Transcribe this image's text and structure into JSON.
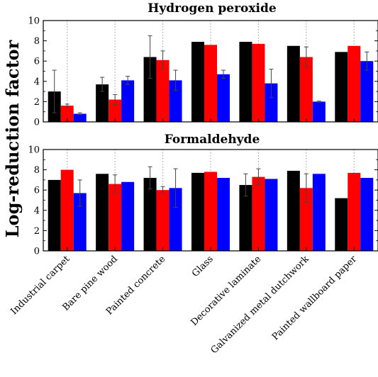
{
  "chart_data": [
    {
      "type": "bar",
      "title": "Hydrogen peroxide",
      "ylabel": "Log-reduction factor",
      "categories": [
        "Industrial carpet",
        "Bare pine wood",
        "Painted concrete",
        "Glass",
        "Decorative laminate",
        "Galvanized metal dutchwork",
        "Painted wallboard paper"
      ],
      "ylim": [
        0,
        10
      ],
      "yticks": [
        0,
        2,
        4,
        6,
        8,
        10
      ],
      "series": [
        {
          "color": "#000000",
          "values": [
            3.0,
            3.7,
            6.4,
            7.9,
            7.9,
            7.5,
            6.9
          ],
          "errors": [
            2.1,
            0.7,
            2.1,
            0,
            0,
            0,
            0
          ]
        },
        {
          "color": "#ff0000",
          "values": [
            1.6,
            2.2,
            6.1,
            7.6,
            7.7,
            6.4,
            7.5
          ],
          "errors": [
            0.15,
            0.5,
            0.9,
            0,
            0,
            1.0,
            0
          ]
        },
        {
          "color": "#0000ff",
          "values": [
            0.8,
            4.1,
            4.1,
            4.7,
            3.8,
            2.0,
            6.0
          ],
          "errors": [
            0.1,
            0.4,
            1.0,
            0.4,
            1.4,
            0.05,
            0.9
          ]
        }
      ]
    },
    {
      "type": "bar",
      "title": "Formaldehyde",
      "ylabel": "Log-reduction factor",
      "categories": [
        "Industrial carpet",
        "Bare pine wood",
        "Painted concrete",
        "Glass",
        "Decorative laminate",
        "Galvanized metal dutchwork",
        "Painted wallboard paper"
      ],
      "ylim": [
        0,
        10
      ],
      "yticks": [
        0,
        2,
        4,
        6,
        8,
        10
      ],
      "series": [
        {
          "color": "#000000",
          "values": [
            7.0,
            7.6,
            7.2,
            7.7,
            6.5,
            7.9,
            5.2
          ],
          "errors": [
            0,
            0,
            1.1,
            0,
            1.1,
            0,
            0
          ]
        },
        {
          "color": "#ff0000",
          "values": [
            8.0,
            6.6,
            6.0,
            7.8,
            7.3,
            6.2,
            7.7
          ],
          "errors": [
            0,
            0.9,
            0.35,
            0,
            0.8,
            1.4,
            0
          ]
        },
        {
          "color": "#0000ff",
          "values": [
            5.7,
            6.8,
            6.2,
            7.2,
            7.1,
            7.6,
            7.2
          ],
          "errors": [
            1.3,
            0,
            1.9,
            0,
            0,
            0,
            0
          ]
        }
      ]
    }
  ]
}
